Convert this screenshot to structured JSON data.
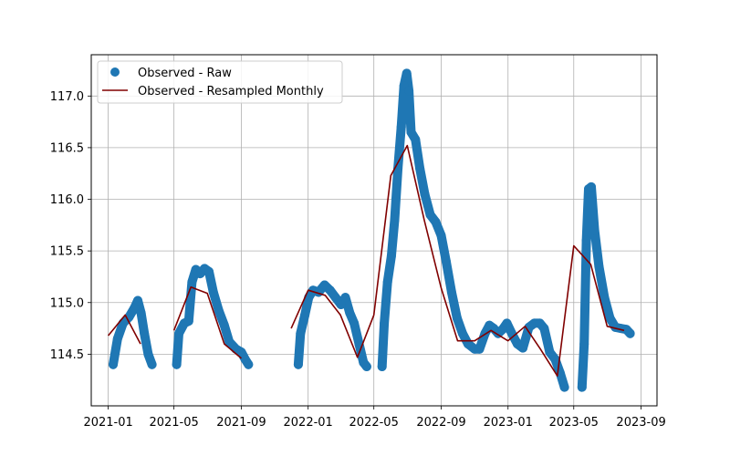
{
  "chart_data": {
    "type": "line",
    "title": "",
    "xlabel": "",
    "ylabel": "",
    "grid": true,
    "legend_position": "top-left",
    "xlim": [
      "2020-12-01",
      "2023-09-30"
    ],
    "ylim": [
      114.0,
      117.4
    ],
    "xticks": [
      "2021-01",
      "2021-05",
      "2021-09",
      "2022-01",
      "2022-05",
      "2022-09",
      "2023-01",
      "2023-05",
      "2023-09"
    ],
    "yticks": [
      "114.5",
      "115.0",
      "115.5",
      "116.0",
      "116.5",
      "117.0"
    ],
    "series": [
      {
        "name": "Observed - Raw",
        "kind": "scatter",
        "color": "#1f77b4",
        "segments": [
          [
            [
              "2021-01-10",
              114.4
            ],
            [
              "2021-01-18",
              114.65
            ],
            [
              "2021-01-28",
              114.8
            ],
            [
              "2021-02-08",
              114.86
            ],
            [
              "2021-02-18",
              114.95
            ],
            [
              "2021-02-24",
              115.02
            ],
            [
              "2021-03-02",
              114.9
            ],
            [
              "2021-03-08",
              114.7
            ],
            [
              "2021-03-15",
              114.5
            ],
            [
              "2021-03-22",
              114.4
            ]
          ],
          [
            [
              "2021-05-06",
              114.4
            ],
            [
              "2021-05-10",
              114.7
            ],
            [
              "2021-05-20",
              114.8
            ],
            [
              "2021-05-28",
              114.82
            ],
            [
              "2021-06-03",
              115.2
            ],
            [
              "2021-06-10",
              115.32
            ],
            [
              "2021-06-18",
              115.28
            ],
            [
              "2021-06-26",
              115.33
            ],
            [
              "2021-07-04",
              115.3
            ],
            [
              "2021-07-12",
              115.1
            ],
            [
              "2021-07-22",
              114.92
            ],
            [
              "2021-08-01",
              114.78
            ],
            [
              "2021-08-10",
              114.62
            ],
            [
              "2021-08-22",
              114.55
            ],
            [
              "2021-09-01",
              114.52
            ],
            [
              "2021-09-08",
              114.45
            ],
            [
              "2021-09-14",
              114.4
            ]
          ],
          [
            [
              "2021-12-14",
              114.4
            ],
            [
              "2021-12-18",
              114.7
            ],
            [
              "2021-12-26",
              114.88
            ],
            [
              "2022-01-02",
              115.05
            ],
            [
              "2022-01-10",
              115.12
            ],
            [
              "2022-01-20",
              115.1
            ],
            [
              "2022-01-31",
              115.17
            ],
            [
              "2022-02-10",
              115.12
            ],
            [
              "2022-02-20",
              115.05
            ],
            [
              "2022-03-02",
              114.98
            ],
            [
              "2022-03-10",
              115.05
            ],
            [
              "2022-03-18",
              114.9
            ],
            [
              "2022-03-26",
              114.8
            ],
            [
              "2022-04-04",
              114.6
            ],
            [
              "2022-04-12",
              114.42
            ],
            [
              "2022-04-18",
              114.38
            ]
          ],
          [
            [
              "2022-05-16",
              114.38
            ],
            [
              "2022-05-20",
              114.8
            ],
            [
              "2022-05-26",
              115.2
            ],
            [
              "2022-06-02",
              115.45
            ],
            [
              "2022-06-08",
              115.8
            ],
            [
              "2022-06-14",
              116.3
            ],
            [
              "2022-06-20",
              116.7
            ],
            [
              "2022-06-25",
              117.1
            ],
            [
              "2022-06-30",
              117.22
            ],
            [
              "2022-07-04",
              117.05
            ],
            [
              "2022-07-08",
              116.65
            ],
            [
              "2022-07-16",
              116.58
            ],
            [
              "2022-07-24",
              116.3
            ],
            [
              "2022-08-02",
              116.05
            ],
            [
              "2022-08-12",
              115.85
            ],
            [
              "2022-08-22",
              115.78
            ],
            [
              "2022-09-01",
              115.65
            ],
            [
              "2022-09-10",
              115.4
            ],
            [
              "2022-09-20",
              115.1
            ],
            [
              "2022-09-30",
              114.85
            ],
            [
              "2022-10-10",
              114.7
            ],
            [
              "2022-10-20",
              114.6
            ],
            [
              "2022-11-01",
              114.55
            ],
            [
              "2022-11-10",
              114.55
            ],
            [
              "2022-11-20",
              114.7
            ],
            [
              "2022-11-28",
              114.78
            ],
            [
              "2022-12-06",
              114.75
            ],
            [
              "2022-12-14",
              114.7
            ],
            [
              "2022-12-22",
              114.74
            ],
            [
              "2022-12-30",
              114.8
            ],
            [
              "2023-01-08",
              114.7
            ],
            [
              "2023-01-18",
              114.6
            ],
            [
              "2023-01-28",
              114.56
            ],
            [
              "2023-02-08",
              114.76
            ],
            [
              "2023-02-18",
              114.8
            ],
            [
              "2023-02-28",
              114.8
            ],
            [
              "2023-03-08",
              114.75
            ],
            [
              "2023-03-18",
              114.52
            ],
            [
              "2023-03-28",
              114.45
            ],
            [
              "2023-04-06",
              114.32
            ],
            [
              "2023-04-14",
              114.18
            ]
          ],
          [
            [
              "2023-05-16",
              114.18
            ],
            [
              "2023-05-20",
              114.6
            ],
            [
              "2023-05-24",
              115.6
            ],
            [
              "2023-05-28",
              116.1
            ],
            [
              "2023-06-02",
              116.12
            ],
            [
              "2023-06-08",
              115.7
            ],
            [
              "2023-06-16",
              115.35
            ],
            [
              "2023-06-26",
              115.05
            ],
            [
              "2023-07-06",
              114.85
            ],
            [
              "2023-07-16",
              114.76
            ],
            [
              "2023-07-26",
              114.75
            ],
            [
              "2023-08-05",
              114.74
            ],
            [
              "2023-08-12",
              114.7
            ]
          ]
        ]
      },
      {
        "name": "Observed - Resampled Monthly",
        "kind": "line",
        "color": "#800000",
        "segments": [
          [
            [
              "2021-01-01",
              114.68
            ],
            [
              "2021-02-01",
              114.88
            ],
            [
              "2021-03-01",
              114.6
            ]
          ],
          [
            [
              "2021-05-01",
              114.73
            ],
            [
              "2021-06-01",
              115.15
            ],
            [
              "2021-07-01",
              115.09
            ],
            [
              "2021-08-01",
              114.6
            ],
            [
              "2021-09-01",
              114.46
            ]
          ],
          [
            [
              "2021-12-01",
              114.75
            ],
            [
              "2022-01-01",
              115.12
            ],
            [
              "2022-02-01",
              115.07
            ],
            [
              "2022-03-01",
              114.88
            ],
            [
              "2022-04-01",
              114.47
            ],
            [
              "2022-05-01",
              114.88
            ],
            [
              "2022-06-01",
              116.23
            ],
            [
              "2022-07-01",
              116.52
            ],
            [
              "2022-08-01",
              115.8
            ],
            [
              "2022-09-01",
              115.14
            ],
            [
              "2022-10-01",
              114.63
            ],
            [
              "2022-11-01",
              114.63
            ],
            [
              "2022-12-01",
              114.73
            ],
            [
              "2023-01-01",
              114.63
            ],
            [
              "2023-02-01",
              114.77
            ],
            [
              "2023-03-01",
              114.55
            ],
            [
              "2023-04-01",
              114.29
            ],
            [
              "2023-05-01",
              115.55
            ],
            [
              "2023-06-01",
              115.37
            ],
            [
              "2023-07-01",
              114.77
            ],
            [
              "2023-08-01",
              114.73
            ]
          ]
        ]
      }
    ]
  }
}
